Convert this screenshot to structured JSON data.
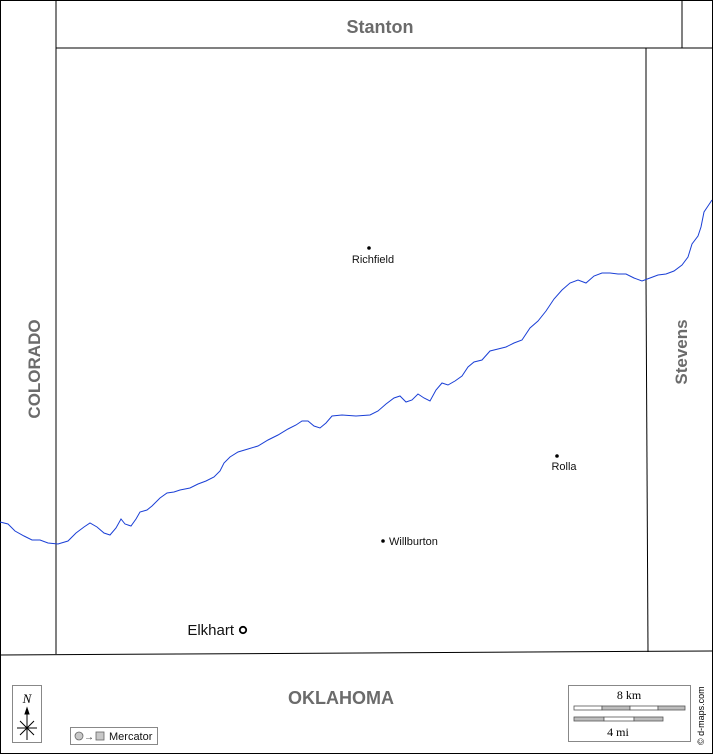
{
  "regions": {
    "north": "Stanton",
    "west": "COLORADO",
    "east": "Stevens",
    "south": "OKLAHOMA"
  },
  "towns": {
    "richfield": "Richfield",
    "rolla": "Rolla",
    "willburton": "Willburton",
    "elkhart": "Elkhart"
  },
  "compass": {
    "north_letter": "N"
  },
  "projection": {
    "label": "Mercator",
    "arrow": "→"
  },
  "scale": {
    "km_label": "8 km",
    "mi_label": "4 mi"
  },
  "credit": "© d-maps.com",
  "colors": {
    "river": "#1a3fd6",
    "border": "#000000",
    "region_label": "#6b6b6b"
  }
}
